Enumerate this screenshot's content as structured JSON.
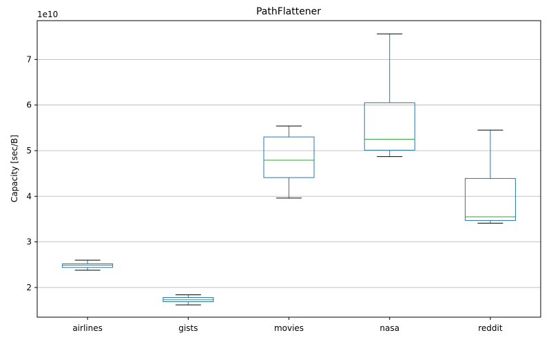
{
  "chart_data": {
    "type": "box",
    "title": "PathFlattener",
    "ylabel": "Capacity [sec/B]",
    "xlabel": "",
    "offset_text": "1e10",
    "ylim": [
      13500000000,
      78500000000
    ],
    "yticks": [
      20000000000,
      30000000000,
      40000000000,
      50000000000,
      60000000000,
      70000000000
    ],
    "ytick_labels": [
      "2",
      "3",
      "4",
      "5",
      "6",
      "7"
    ],
    "grid": "horizontal",
    "categories": [
      "airlines",
      "gists",
      "movies",
      "nasa",
      "reddit"
    ],
    "boxes": [
      {
        "category": "airlines",
        "whisker_low": 23800000000,
        "q1": 24400000000,
        "median": 24900000000,
        "q3": 25200000000,
        "whisker_high": 26000000000
      },
      {
        "category": "gists",
        "whisker_low": 16200000000,
        "q1": 16900000000,
        "median": 17300000000,
        "q3": 17800000000,
        "whisker_high": 18400000000
      },
      {
        "category": "movies",
        "whisker_low": 39600000000,
        "q1": 44100000000,
        "median": 47900000000,
        "q3": 53000000000,
        "whisker_high": 55400000000
      },
      {
        "category": "nasa",
        "whisker_low": 48700000000,
        "q1": 50100000000,
        "median": 52500000000,
        "q3": 60500000000,
        "whisker_high": 75600000000
      },
      {
        "category": "reddit",
        "whisker_low": 34100000000,
        "q1": 34700000000,
        "median": 35500000000,
        "q3": 43900000000,
        "whisker_high": 54500000000
      }
    ]
  },
  "colors": {
    "box": "#1f77b4",
    "median": "#2ca02c",
    "whisker_cap": "#000000",
    "grid": "#b0b0b0",
    "axes": "#000000"
  }
}
